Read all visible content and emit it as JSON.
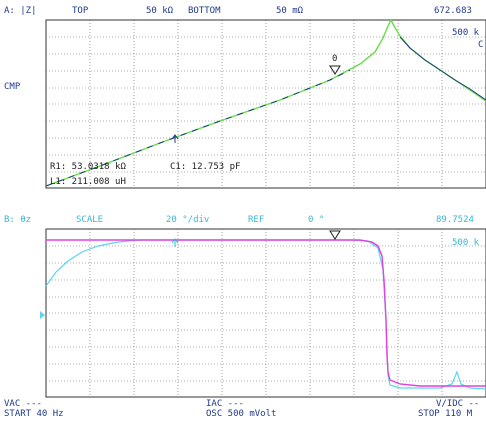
{
  "trace_a": {
    "header": {
      "channel": "A: |Z|",
      "top_label": "TOP",
      "top_value": "50 kΩ",
      "bottom_label": "BOTTOM",
      "bottom_value": "50 mΩ",
      "readout": "672.683"
    },
    "side_label": "CMP",
    "right_labels": [
      "500 k",
      "C"
    ],
    "marker_number": "0",
    "annotations": {
      "r1": "R1:  53.0318 kΩ",
      "c1": "C1:   12.753 pF",
      "l1": "L1:  211.008 uH"
    }
  },
  "trace_b": {
    "header": {
      "channel": "B: θz",
      "scale_label": "SCALE",
      "scale_value": "20 °/div",
      "ref_label": "REF",
      "ref_value": "0 °",
      "readout": "89.7524"
    },
    "right_labels": [
      "500 k"
    ]
  },
  "footer": {
    "vac": "VAC ---",
    "start": "START 40 Hz",
    "iac": "IAC ---",
    "osc": "OSC 500 mVolt",
    "vdc": "V/IDC --",
    "stop": "STOP 110 M"
  },
  "colors": {
    "trace_green": "#66dd44",
    "trace_blue": "#1f3a8a",
    "trace_cyan": "#5cd6f0",
    "trace_magenta": "#e040e0",
    "grid": "#555555"
  }
}
